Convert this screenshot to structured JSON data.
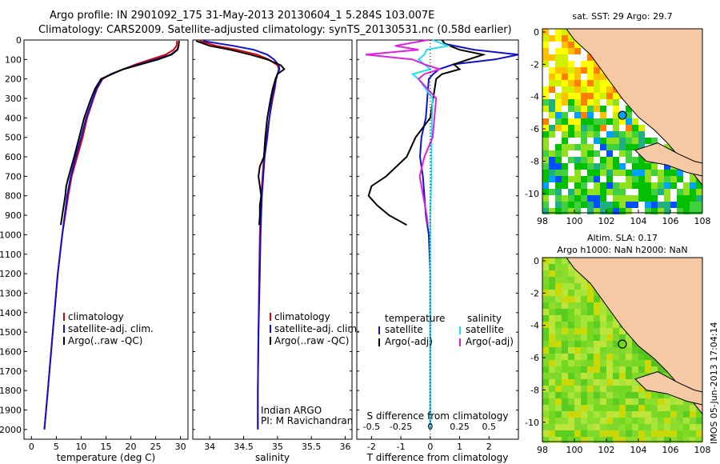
{
  "header": {
    "line1": "Argo profile: IN 2901092_175 31-May-2013 20130604_1 5.284S 103.007E",
    "line2": "Climatology: CARS2009. Satellite-adjusted climatology: synTS_20130531.nc (0.58d earlier)"
  },
  "colors": {
    "climatology": "#e00000",
    "satellite": "#1010d0",
    "argo": "#000000",
    "cyan": "#20e0f0",
    "magenta": "#e020e0",
    "land": "#f5c9a3",
    "green": "#55c020"
  },
  "legend_profile": {
    "climatology": "climatology",
    "satellite": "satellite-adj. clim.",
    "argo": "Argo(..raw -QC)"
  },
  "legend_diff": {
    "temperature_title": "temperature",
    "salinity_title": "salinity",
    "satellite": "satellite",
    "argo": "Argo(-adj)"
  },
  "credits": {
    "line1": "Indian ARGO",
    "line2": "PI: M Ravichandran"
  },
  "maps": {
    "sst_title": "sat. SST: 29 Argo: 29.7",
    "sla_title1": "Altim. SLA: 0.17",
    "sla_title2": "Argo h1000: NaN h2000: NaN",
    "side_label": "IMOS 05-Jun-2013 17:04:14",
    "x_ticks": [
      "98",
      "100",
      "102",
      "104",
      "106",
      "108"
    ],
    "sst_y_ticks": [
      "0",
      "-2",
      "-4",
      "-6",
      "-8",
      "-10"
    ],
    "sla_y_ticks": [
      "0",
      "-2",
      "-4",
      "-6",
      "-8",
      "-10"
    ]
  },
  "chart_data": [
    {
      "type": "line",
      "panel": "temperature",
      "xlabel": "temperature (deg C)",
      "x_ticks": [
        0,
        5,
        10,
        15,
        20,
        25,
        30
      ],
      "xlim": [
        -1.5,
        31.5
      ],
      "ylim": [
        2050,
        0
      ],
      "y_ticks": [
        0,
        100,
        200,
        300,
        400,
        500,
        600,
        700,
        800,
        900,
        1000,
        1100,
        1200,
        1300,
        1400,
        1500,
        1600,
        1700,
        1800,
        1900,
        2000
      ],
      "series": [
        {
          "name": "climatology",
          "depth": [
            5,
            30,
            50,
            75,
            100,
            125,
            150,
            175,
            200,
            250,
            300,
            400,
            500,
            600,
            700,
            800,
            900,
            1000,
            1200,
            1500,
            1800,
            2000
          ],
          "values": [
            29.3,
            29.2,
            28.6,
            27,
            24,
            21,
            18.5,
            16,
            14.3,
            13.2,
            12.5,
            11.2,
            10.3,
            9.2,
            8.1,
            7.4,
            6.8,
            6.2,
            5.3,
            4.3,
            3.3,
            2.6
          ]
        },
        {
          "name": "satellite-adj. clim.",
          "depth": [
            5,
            30,
            50,
            75,
            100,
            125,
            150,
            175,
            200,
            250,
            300,
            400,
            500,
            600,
            700,
            800,
            900,
            1000,
            1200,
            1500,
            1800,
            2000
          ],
          "values": [
            29.7,
            29.6,
            29.3,
            28,
            25,
            21.5,
            18.5,
            16,
            14.2,
            13.1,
            12.4,
            11,
            10,
            8.9,
            7.9,
            7.2,
            6.7,
            6.2,
            5.3,
            4.3,
            3.3,
            2.6
          ]
        },
        {
          "name": "Argo(..raw -QC)",
          "depth": [
            5,
            30,
            50,
            75,
            100,
            125,
            150,
            175,
            200,
            250,
            300,
            400,
            500,
            600,
            700,
            750,
            800,
            850,
            900,
            950
          ],
          "values": [
            29.7,
            29.6,
            29.4,
            28.2,
            25.5,
            22,
            18.5,
            16.2,
            14,
            12.8,
            12,
            10.6,
            9.6,
            8.6,
            7.5,
            7,
            6.8,
            6.5,
            6.2,
            5.9
          ]
        }
      ]
    },
    {
      "type": "line",
      "panel": "salinity",
      "xlabel": "salinity",
      "x_ticks": [
        34,
        34.5,
        35,
        35.5,
        36
      ],
      "xlim": [
        33.75,
        36.1
      ],
      "ylim": [
        2050,
        0
      ],
      "series": [
        {
          "name": "climatology",
          "depth": [
            5,
            30,
            50,
            75,
            100,
            130,
            150,
            175,
            200,
            250,
            300,
            400,
            500,
            600,
            700,
            800,
            900,
            1000,
            1200,
            1500,
            1800,
            2000
          ],
          "values": [
            33.85,
            34.1,
            34.4,
            34.7,
            34.87,
            35.0,
            35.02,
            35.0,
            34.98,
            34.96,
            34.93,
            34.88,
            34.84,
            34.8,
            34.78,
            34.76,
            34.75,
            34.74,
            34.73,
            34.72,
            34.71,
            34.71
          ]
        },
        {
          "name": "satellite-adj. clim.",
          "depth": [
            5,
            30,
            50,
            75,
            100,
            130,
            150,
            175,
            200,
            250,
            300,
            400,
            500,
            600,
            700,
            800,
            900,
            1000,
            1200,
            1500,
            1800,
            2000
          ],
          "values": [
            33.9,
            34.35,
            34.65,
            34.85,
            34.95,
            35.02,
            35.03,
            35.0,
            34.98,
            34.95,
            34.92,
            34.88,
            34.85,
            34.81,
            34.79,
            34.77,
            34.76,
            34.75,
            34.74,
            34.72,
            34.71,
            34.71
          ]
        },
        {
          "name": "Argo(..raw -QC)",
          "depth": [
            5,
            30,
            50,
            75,
            100,
            130,
            150,
            175,
            200,
            250,
            300,
            400,
            500,
            600,
            650,
            700,
            750,
            800,
            850,
            900,
            950
          ],
          "values": [
            33.8,
            34.0,
            34.3,
            34.6,
            34.85,
            35.05,
            35.1,
            35.0,
            34.97,
            34.93,
            34.9,
            34.85,
            34.82,
            34.8,
            34.74,
            34.72,
            34.74,
            34.76,
            34.74,
            34.74,
            34.73
          ]
        }
      ]
    },
    {
      "type": "line",
      "panel": "difference",
      "xlabel": "T difference from climatology",
      "x2label": "S difference from climatology",
      "x_ticks": [
        -2,
        -1,
        0,
        1,
        2
      ],
      "x2_ticks": [
        -0.5,
        -0.25,
        0,
        0.25,
        0.5
      ],
      "xlim": [
        -2.5,
        3.0
      ],
      "ylim": [
        2050,
        0
      ],
      "series": [
        {
          "name": "temperature satellite",
          "depth": [
            0,
            20,
            50,
            75,
            100,
            125,
            150,
            175,
            200,
            300,
            400,
            500,
            600,
            700,
            800,
            900,
            1000,
            1200,
            1500,
            1800,
            2000
          ],
          "values": [
            0.4,
            0.5,
            1.5,
            3.0,
            2.2,
            0.8,
            0.3,
            0.1,
            -0.05,
            -0.1,
            -0.15,
            -0.3,
            -0.35,
            -0.25,
            -0.2,
            -0.15,
            -0.05,
            0,
            0,
            0,
            0
          ]
        },
        {
          "name": "temperature Argo(-adj)",
          "depth": [
            0,
            20,
            50,
            75,
            100,
            125,
            150,
            175,
            200,
            300,
            400,
            500,
            600,
            700,
            750,
            800,
            850,
            900,
            950
          ],
          "values": [
            0.4,
            0.5,
            1.0,
            1.8,
            1.3,
            0.8,
            1.0,
            0.4,
            0.2,
            0.1,
            0,
            -0.5,
            -0.8,
            -1.5,
            -2.0,
            -2.1,
            -1.8,
            -1.4,
            -0.8
          ]
        },
        {
          "name": "salinity satellite",
          "depth": [
            0,
            30,
            50,
            75,
            100,
            125,
            150,
            175,
            200,
            300,
            500,
            700,
            900,
            1100,
            1500,
            1800,
            2000
          ],
          "values": [
            0.02,
            0.15,
            -0.03,
            -0.05,
            -0.1,
            -0.05,
            0.0,
            -0.15,
            -0.1,
            0.02,
            0.01,
            0.01,
            0.0,
            0.0,
            0.0,
            0.0,
            0.0
          ]
        },
        {
          "name": "salinity Argo(-adj)",
          "depth": [
            0,
            30,
            50,
            75,
            100,
            125,
            150,
            175,
            200,
            300,
            500,
            600,
            700,
            800,
            900,
            950
          ],
          "values": [
            -0.02,
            -0.3,
            -0.1,
            -0.55,
            -0.15,
            -0.05,
            0.08,
            -0.05,
            -0.1,
            0.05,
            0.02,
            -0.05,
            -0.09,
            -0.06,
            -0.03,
            -0.02
          ]
        }
      ]
    }
  ]
}
